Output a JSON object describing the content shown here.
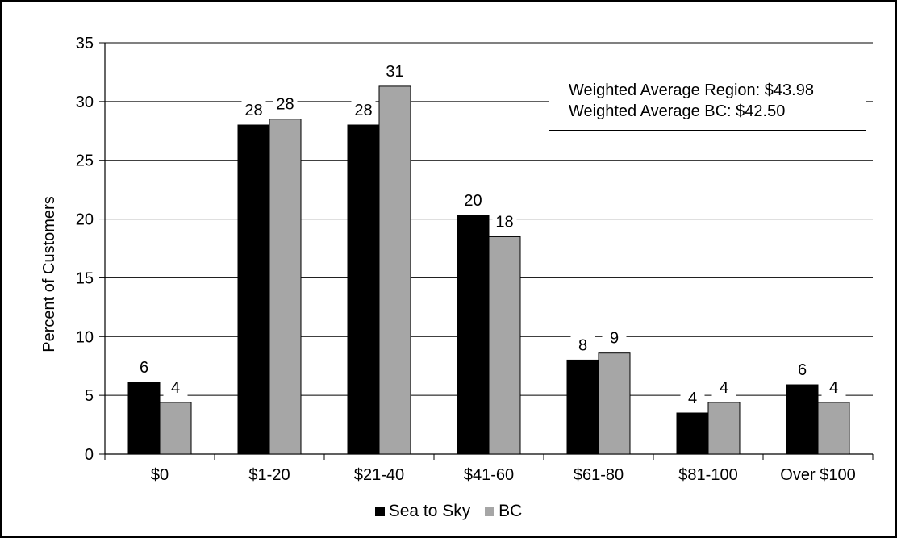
{
  "chart_data": {
    "type": "bar",
    "categories": [
      "$0",
      "$1-20",
      "$21-40",
      "$41-60",
      "$61-80",
      "$81-100",
      "Over $100"
    ],
    "series": [
      {
        "name": "Sea to Sky",
        "color": "#000000",
        "values": [
          6.1,
          28.0,
          28.0,
          20.3,
          8.0,
          3.5,
          5.9
        ]
      },
      {
        "name": "BC",
        "color": "#a6a6a6",
        "values": [
          4.4,
          28.5,
          31.3,
          18.5,
          8.6,
          4.4,
          4.4
        ]
      }
    ],
    "data_labels": [
      [
        "6",
        "28",
        "28",
        "20",
        "8",
        "4",
        "6"
      ],
      [
        "4",
        "28",
        "31",
        "18",
        "9",
        "4",
        "4"
      ]
    ],
    "ylabel": "Percent of Customers",
    "xlabel": "",
    "ylim": [
      0,
      35
    ],
    "yticks": [
      0,
      5,
      10,
      15,
      20,
      25,
      30,
      35
    ],
    "grid": true,
    "legend_position": "bottom"
  },
  "annotation": {
    "line1": "Weighted Average Region: $43.98",
    "line2": "Weighted Average BC: $42.50"
  }
}
